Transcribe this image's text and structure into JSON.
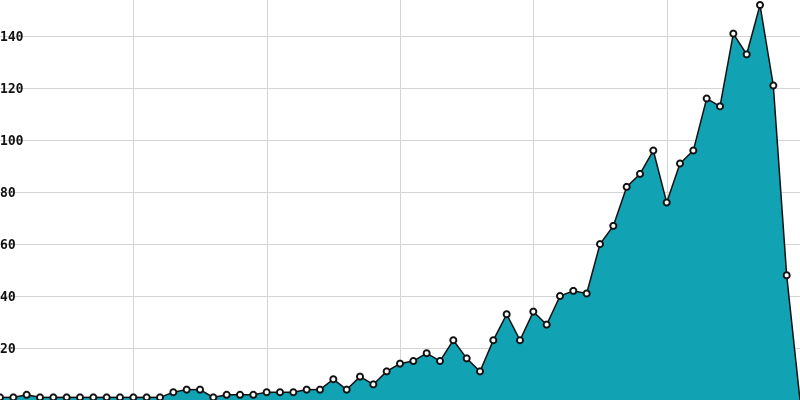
{
  "chart_data": {
    "type": "area",
    "title": "",
    "xlabel": "",
    "ylabel": "",
    "ylim": [
      0,
      152
    ],
    "y_ticks": [
      20,
      40,
      60,
      80,
      100,
      120,
      140
    ],
    "x_range": [
      0,
      60
    ],
    "x_grid": [
      10,
      20,
      30,
      40,
      50
    ],
    "grid": true,
    "colors": {
      "area": "#11a3b3",
      "line": "#111111",
      "marker_fill": "#ffffff",
      "grid": "#d4d4d4"
    },
    "series": [
      {
        "values": [
          1,
          1,
          2,
          1,
          1,
          1,
          1,
          1,
          1,
          1,
          1,
          1,
          1,
          3,
          4,
          4,
          1,
          2,
          2,
          2,
          3,
          3,
          3,
          4,
          4,
          8,
          4,
          9,
          6,
          11,
          14,
          15,
          18,
          15,
          23,
          16,
          11,
          23,
          33,
          23,
          34,
          29,
          40,
          42,
          41,
          60,
          67,
          82,
          87,
          96,
          76,
          91,
          96,
          116,
          113,
          141,
          133,
          152,
          121,
          48,
          0
        ]
      }
    ]
  }
}
